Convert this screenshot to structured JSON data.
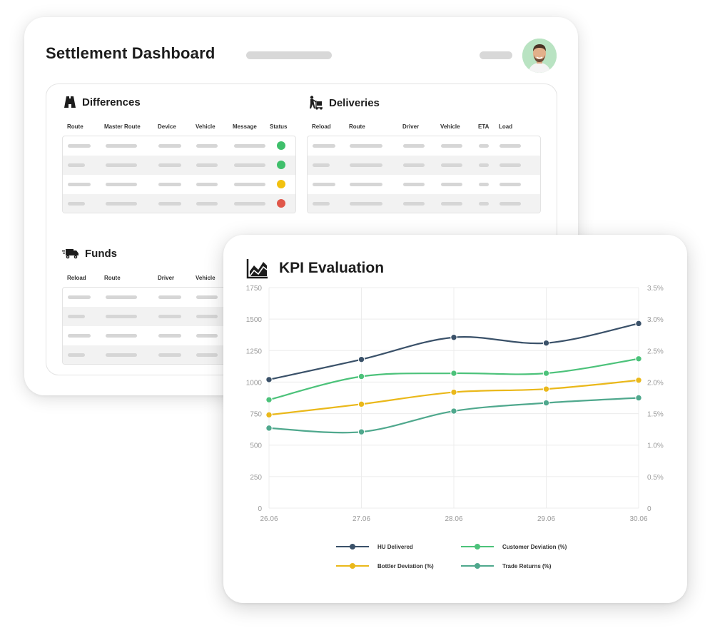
{
  "dashboard": {
    "title": "Settlement Dashboard"
  },
  "differences": {
    "title": "Differences",
    "columns": [
      "Route",
      "Master Route",
      "Device",
      "Vehicle",
      "Message",
      "Status"
    ],
    "status_colors": [
      "#3fbf6b",
      "#3fbf6b",
      "#f2c10f",
      "#e0574a"
    ]
  },
  "deliveries": {
    "title": "Deliveries",
    "columns": [
      "Reload",
      "Route",
      "Driver",
      "Vehicle",
      "ETA",
      "Load"
    ]
  },
  "funds": {
    "title": "Funds",
    "columns": [
      "Reload",
      "Route",
      "Driver",
      "Vehicle"
    ]
  },
  "kpi": {
    "title": "KPI Evaluation"
  },
  "chart_data": {
    "type": "line",
    "title": "KPI Evaluation",
    "categories": [
      "26.06",
      "27.06",
      "28.06",
      "29.06",
      "30.06"
    ],
    "y_left": {
      "ticks": [
        "0",
        "250",
        "500",
        "750",
        "1000",
        "1250",
        "1500",
        "1750"
      ],
      "ylim": [
        0,
        1750
      ]
    },
    "y_right": {
      "ticks": [
        "0",
        "0.5%",
        "1.0%",
        "1.5%",
        "2.0%",
        "2.5%",
        "3.0%",
        "3.5%"
      ],
      "ylim": [
        0,
        3.5
      ]
    },
    "grid": true,
    "legend_position": "bottom",
    "series": [
      {
        "name": "HU Delivered",
        "axis": "left",
        "color": "#3a5169",
        "values": [
          1020,
          1180,
          1355,
          1310,
          1465
        ]
      },
      {
        "name": "Customer Deviation (%)",
        "axis": "right",
        "color": "#4cc27a",
        "values": [
          1.72,
          2.09,
          2.14,
          2.14,
          2.37
        ]
      },
      {
        "name": "Bottler Deviation (%)",
        "axis": "right",
        "color": "#eab81a",
        "values": [
          1.48,
          1.65,
          1.84,
          1.89,
          2.03
        ]
      },
      {
        "name": "Trade Returns (%)",
        "axis": "right",
        "color": "#4fa88d",
        "values": [
          1.27,
          1.21,
          1.54,
          1.67,
          1.75
        ]
      }
    ]
  }
}
